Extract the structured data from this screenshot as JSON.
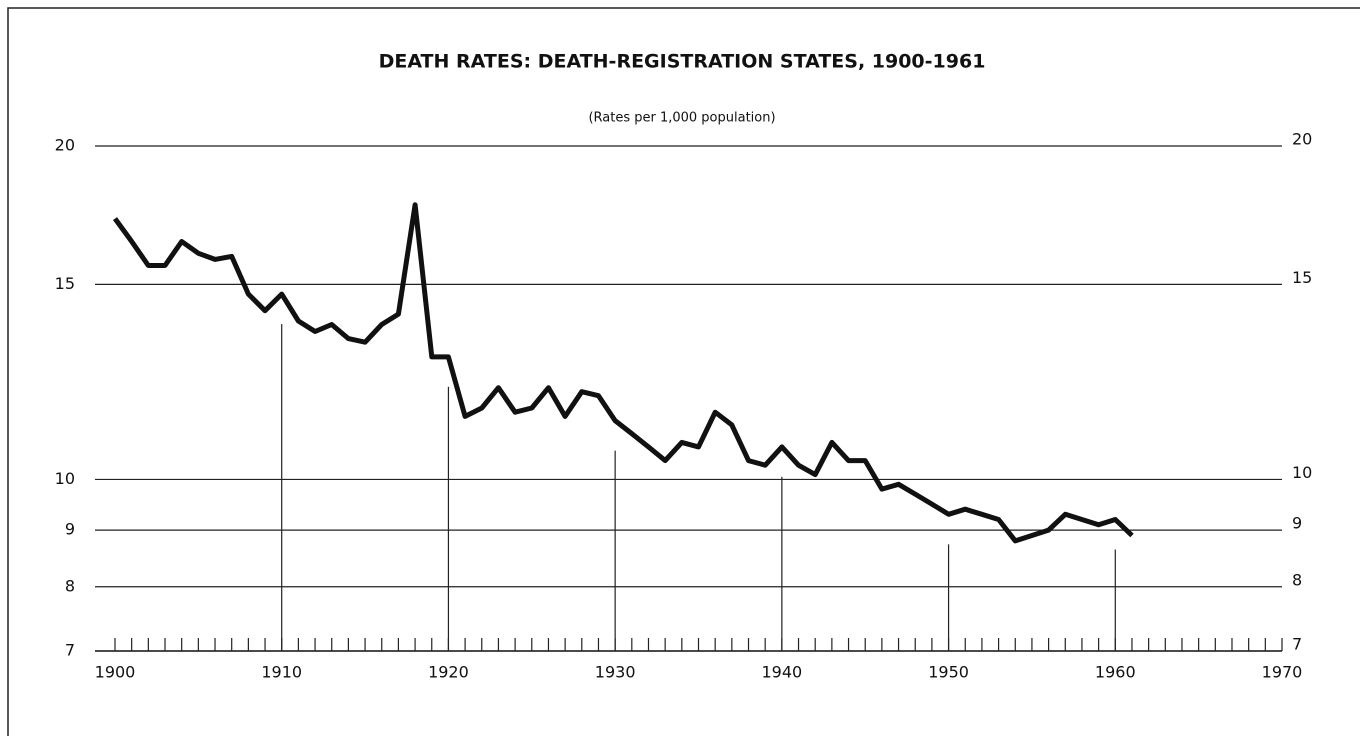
{
  "chart_data": {
    "type": "line",
    "title": "DEATH RATES: DEATH-REGISTRATION STATES, 1900-1961",
    "subtitle": "(Rates per 1,000 population)",
    "x": [
      1900,
      1901,
      1902,
      1903,
      1904,
      1905,
      1906,
      1907,
      1908,
      1909,
      1910,
      1911,
      1912,
      1913,
      1914,
      1915,
      1916,
      1917,
      1918,
      1919,
      1920,
      1921,
      1922,
      1923,
      1924,
      1925,
      1926,
      1927,
      1928,
      1929,
      1930,
      1931,
      1932,
      1933,
      1934,
      1935,
      1936,
      1937,
      1938,
      1939,
      1940,
      1941,
      1942,
      1943,
      1944,
      1945,
      1946,
      1947,
      1948,
      1949,
      1950,
      1951,
      1952,
      1953,
      1954,
      1955,
      1956,
      1957,
      1958,
      1959,
      1960,
      1961
    ],
    "values": [
      17.2,
      16.4,
      15.6,
      15.6,
      16.4,
      16.0,
      15.8,
      15.9,
      14.7,
      14.2,
      14.7,
      13.9,
      13.6,
      13.8,
      13.4,
      13.3,
      13.8,
      14.1,
      17.7,
      12.9,
      12.9,
      11.4,
      11.6,
      12.1,
      11.5,
      11.6,
      12.1,
      11.4,
      12.0,
      11.9,
      11.3,
      11.0,
      10.7,
      10.4,
      10.8,
      10.7,
      11.5,
      11.2,
      10.4,
      10.3,
      10.7,
      10.3,
      10.1,
      10.8,
      10.4,
      10.4,
      9.8,
      9.9,
      9.7,
      9.5,
      9.3,
      9.4,
      9.3,
      9.2,
      8.8,
      8.9,
      9.0,
      9.3,
      9.2,
      9.1,
      9.2,
      8.9
    ],
    "color": "#111111",
    "xlim": [
      1900,
      1970
    ],
    "xticks": [
      1900,
      1910,
      1920,
      1930,
      1940,
      1950,
      1960,
      1970
    ],
    "ylim": [
      7,
      20
    ],
    "yticks": [
      7,
      8,
      9,
      10,
      15,
      20
    ],
    "y_scale": "log",
    "grid": true
  }
}
